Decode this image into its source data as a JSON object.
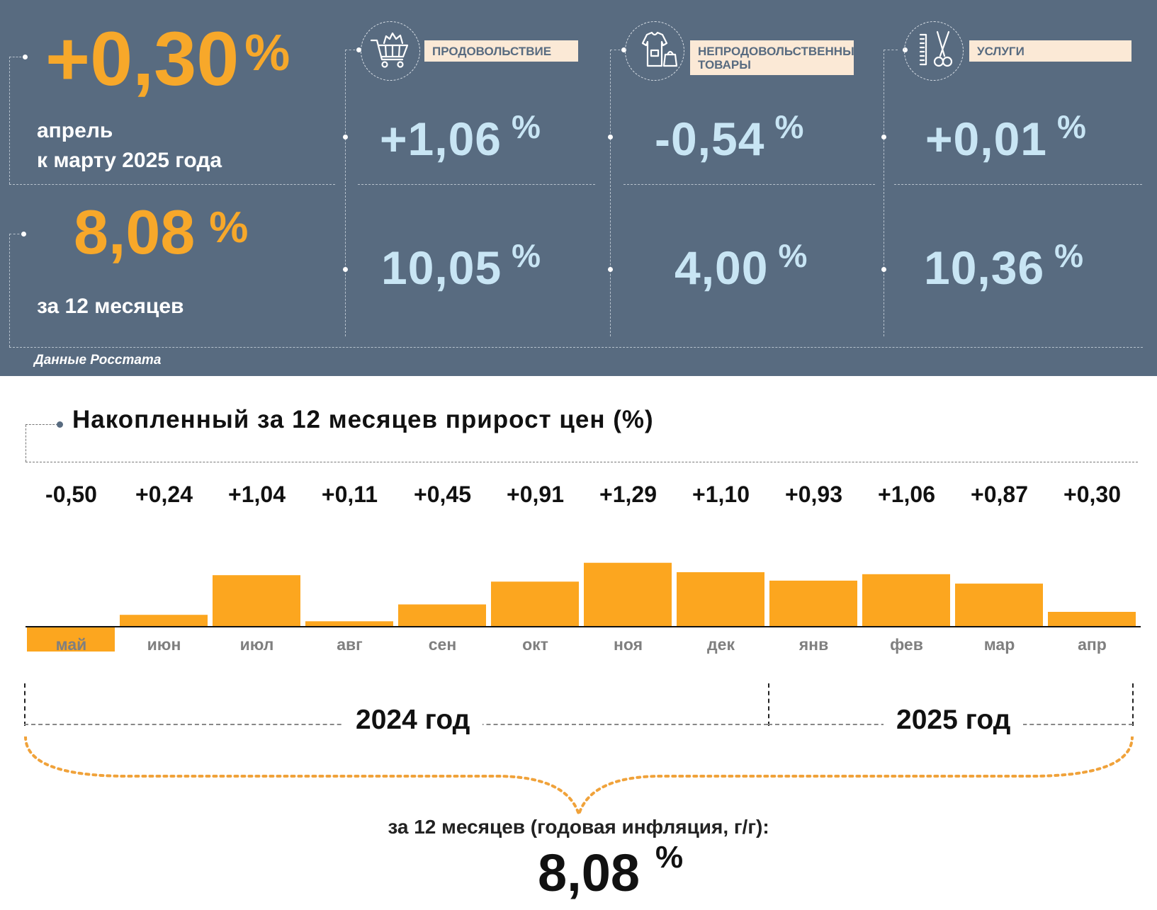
{
  "top_panel": {
    "monthly": {
      "value": "+0,30",
      "unit": "%",
      "caption_line1": "апрель",
      "caption_line2": "к марту 2025 года"
    },
    "annual": {
      "value": "8,08",
      "unit": "%",
      "caption": "за 12 месяцев"
    },
    "categories": [
      {
        "label": "ПРОДОВОЛЬСТВИЕ",
        "icon": "shopping-cart-icon",
        "monthly": "+1,06",
        "annual": "10,05",
        "unit": "%"
      },
      {
        "label": "НЕПРОДОВОЛЬСТВЕННЫЕ ТОВАРЫ",
        "icon": "clothing-bag-icon",
        "monthly": "-0,54",
        "annual": "4,00",
        "unit": "%"
      },
      {
        "label": "УСЛУГИ",
        "icon": "scissors-comb-icon",
        "monthly": "+0,01",
        "annual": "10,36",
        "unit": "%"
      }
    ],
    "source": "Данные Росстата",
    "colors": {
      "panel_bg": "#586b80",
      "accent_orange": "#f7a82a",
      "value_blue": "#c8e5f4",
      "label_bg": "#fbe9d6"
    }
  },
  "chart_data": {
    "type": "bar",
    "title": "Накопленный за 12 месяцев прирост цен (%)",
    "categories": [
      "май",
      "июн",
      "июл",
      "авг",
      "сен",
      "окт",
      "ноя",
      "дек",
      "янв",
      "фев",
      "мар",
      "апр"
    ],
    "values": [
      -0.5,
      0.24,
      1.04,
      0.11,
      0.45,
      0.91,
      1.29,
      1.1,
      0.93,
      1.06,
      0.87,
      0.3
    ],
    "value_labels": [
      "-0,50",
      "+0,24",
      "+1,04",
      "+0,11",
      "+0,45",
      "+0,91",
      "+1,29",
      "+1,10",
      "+0,93",
      "+1,06",
      "+0,87",
      "+0,30"
    ],
    "bar_color": "#fca61f",
    "grid": false,
    "years": [
      "2024 год",
      "2025 год"
    ],
    "summary_caption": "за 12 месяцев (годовая инфляция, г/г):",
    "summary_value": "8,08",
    "summary_unit": "%"
  }
}
